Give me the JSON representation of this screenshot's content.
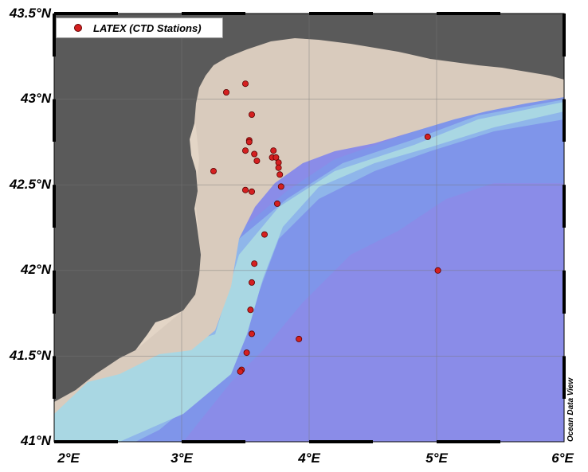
{
  "map": {
    "lon_range": [
      2,
      6
    ],
    "lat_range": [
      41,
      43.5
    ],
    "lon_ticks": [
      {
        "value": 2,
        "label": "2°E"
      },
      {
        "value": 3,
        "label": "3°E"
      },
      {
        "value": 4,
        "label": "4°E"
      },
      {
        "value": 5,
        "label": "5°E"
      },
      {
        "value": 6,
        "label": "6°E"
      }
    ],
    "lat_ticks": [
      {
        "value": 43.5,
        "label": "43.5°N"
      },
      {
        "value": 43,
        "label": "43°N"
      },
      {
        "value": 42.5,
        "label": "42.5°N"
      },
      {
        "value": 42,
        "label": "42°N"
      },
      {
        "value": 41.5,
        "label": "41.5°N"
      },
      {
        "value": 41,
        "label": "41°N"
      }
    ],
    "legend_label": "LATEX (CTD Stations)",
    "credit": "Ocean Data View",
    "colors": {
      "land": "#5a5a5a",
      "shelf": "#d9cbbd",
      "deep": "#8a8ce8",
      "station": "#d42020"
    },
    "stations": [
      {
        "lon": 3.35,
        "lat": 43.04
      },
      {
        "lon": 3.5,
        "lat": 43.09
      },
      {
        "lon": 3.55,
        "lat": 42.91
      },
      {
        "lon": 3.53,
        "lat": 42.76
      },
      {
        "lon": 3.53,
        "lat": 42.75
      },
      {
        "lon": 3.5,
        "lat": 42.7
      },
      {
        "lon": 3.57,
        "lat": 42.68
      },
      {
        "lon": 3.59,
        "lat": 42.64
      },
      {
        "lon": 3.72,
        "lat": 42.7
      },
      {
        "lon": 3.71,
        "lat": 42.66
      },
      {
        "lon": 3.74,
        "lat": 42.66
      },
      {
        "lon": 3.76,
        "lat": 42.63
      },
      {
        "lon": 3.76,
        "lat": 42.6
      },
      {
        "lon": 3.77,
        "lat": 42.56
      },
      {
        "lon": 3.78,
        "lat": 42.49
      },
      {
        "lon": 3.25,
        "lat": 42.58
      },
      {
        "lon": 3.5,
        "lat": 42.47
      },
      {
        "lon": 3.55,
        "lat": 42.46
      },
      {
        "lon": 3.75,
        "lat": 42.39
      },
      {
        "lon": 3.65,
        "lat": 42.21
      },
      {
        "lon": 3.57,
        "lat": 42.04
      },
      {
        "lon": 3.55,
        "lat": 41.93
      },
      {
        "lon": 3.54,
        "lat": 41.77
      },
      {
        "lon": 3.55,
        "lat": 41.63
      },
      {
        "lon": 3.51,
        "lat": 41.52
      },
      {
        "lon": 3.47,
        "lat": 41.42
      },
      {
        "lon": 3.46,
        "lat": 41.41
      },
      {
        "lon": 3.92,
        "lat": 41.6
      },
      {
        "lon": 4.93,
        "lat": 42.78
      },
      {
        "lon": 5.01,
        "lat": 42.0
      }
    ]
  }
}
